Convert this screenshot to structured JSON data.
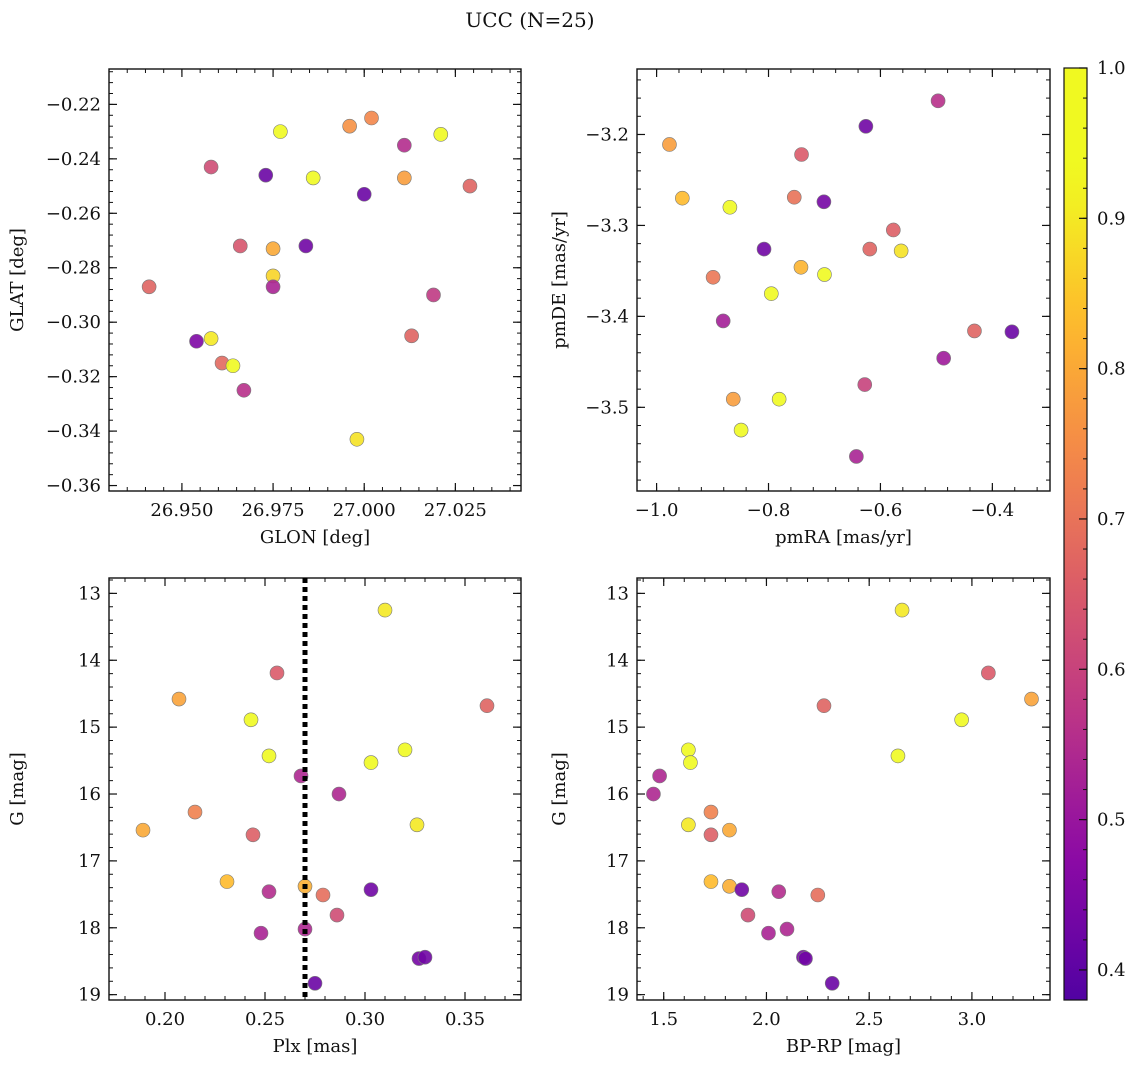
{
  "figure": {
    "title": "UCC (N=25)",
    "colorbar": {
      "min": 0.38,
      "max": 1.0,
      "ticks": [
        0.4,
        0.5,
        0.6,
        0.7,
        0.8,
        0.9,
        1.0
      ],
      "tick_labels": [
        "0.4",
        "0.5",
        "0.6",
        "0.7",
        "0.8",
        "0.9",
        "1.0"
      ]
    },
    "vline_plx": 0.27
  },
  "chart_data": [
    {
      "type": "scatter",
      "xlabel": "GLON [deg]",
      "ylabel": "GLAT [deg]",
      "xlim": [
        26.93,
        27.043
      ],
      "ylim": [
        -0.362,
        -0.207
      ],
      "y_inverted": false,
      "xticks": [
        26.95,
        26.975,
        27.0,
        27.025
      ],
      "xtick_labels": [
        "26.950",
        "26.975",
        "27.000",
        "27.025"
      ],
      "yticks": [
        -0.36,
        -0.34,
        -0.32,
        -0.3,
        -0.28,
        -0.26,
        -0.24,
        -0.22
      ],
      "ytick_labels": [
        "−0.36",
        "−0.34",
        "−0.32",
        "−0.30",
        "−0.28",
        "−0.26",
        "−0.24",
        "−0.22"
      ],
      "points": [
        {
          "x": 26.977,
          "y": -0.23,
          "c": 0.97
        },
        {
          "x": 26.996,
          "y": -0.228,
          "c": 0.76
        },
        {
          "x": 27.002,
          "y": -0.225,
          "c": 0.74
        },
        {
          "x": 27.021,
          "y": -0.231,
          "c": 0.95
        },
        {
          "x": 27.011,
          "y": -0.235,
          "c": 0.55
        },
        {
          "x": 26.958,
          "y": -0.243,
          "c": 0.62
        },
        {
          "x": 26.973,
          "y": -0.246,
          "c": 0.42
        },
        {
          "x": 26.986,
          "y": -0.247,
          "c": 0.97
        },
        {
          "x": 27.011,
          "y": -0.247,
          "c": 0.78
        },
        {
          "x": 27.029,
          "y": -0.25,
          "c": 0.67
        },
        {
          "x": 27.0,
          "y": -0.253,
          "c": 0.42
        },
        {
          "x": 26.966,
          "y": -0.272,
          "c": 0.64
        },
        {
          "x": 26.975,
          "y": -0.273,
          "c": 0.8
        },
        {
          "x": 26.984,
          "y": -0.272,
          "c": 0.43
        },
        {
          "x": 26.975,
          "y": -0.283,
          "c": 0.87
        },
        {
          "x": 26.975,
          "y": -0.287,
          "c": 0.53
        },
        {
          "x": 26.941,
          "y": -0.287,
          "c": 0.67
        },
        {
          "x": 27.019,
          "y": -0.29,
          "c": 0.58
        },
        {
          "x": 27.013,
          "y": -0.305,
          "c": 0.67
        },
        {
          "x": 26.958,
          "y": -0.306,
          "c": 0.9
        },
        {
          "x": 26.954,
          "y": -0.307,
          "c": 0.45
        },
        {
          "x": 26.961,
          "y": -0.315,
          "c": 0.68
        },
        {
          "x": 26.964,
          "y": -0.316,
          "c": 0.99
        },
        {
          "x": 26.967,
          "y": -0.325,
          "c": 0.56
        },
        {
          "x": 26.998,
          "y": -0.343,
          "c": 0.89
        }
      ]
    },
    {
      "type": "scatter",
      "xlabel": "pmRA [mas/yr]",
      "ylabel": "pmDE [mas/yr]",
      "xlim": [
        -1.035,
        -0.297
      ],
      "ylim": [
        -3.592,
        -3.128
      ],
      "y_inverted": false,
      "xticks": [
        -1.0,
        -0.8,
        -0.6,
        -0.4
      ],
      "xtick_labels": [
        "−1.0",
        "−0.8",
        "−0.6",
        "−0.4"
      ],
      "yticks": [
        -3.5,
        -3.4,
        -3.3,
        -3.2
      ],
      "ytick_labels": [
        "−3.5",
        "−3.4",
        "−3.3",
        "−3.2"
      ],
      "points": [
        {
          "x": -0.497,
          "y": -3.163,
          "c": 0.56
        },
        {
          "x": -0.626,
          "y": -3.191,
          "c": 0.43
        },
        {
          "x": -0.977,
          "y": -3.211,
          "c": 0.78
        },
        {
          "x": -0.741,
          "y": -3.222,
          "c": 0.65
        },
        {
          "x": -0.954,
          "y": -3.27,
          "c": 0.83
        },
        {
          "x": -0.754,
          "y": -3.269,
          "c": 0.7
        },
        {
          "x": -0.869,
          "y": -3.28,
          "c": 0.98
        },
        {
          "x": -0.701,
          "y": -3.274,
          "c": 0.44
        },
        {
          "x": -0.577,
          "y": -3.305,
          "c": 0.66
        },
        {
          "x": -0.808,
          "y": -3.326,
          "c": 0.43
        },
        {
          "x": -0.619,
          "y": -3.326,
          "c": 0.67
        },
        {
          "x": -0.563,
          "y": -3.328,
          "c": 0.89
        },
        {
          "x": -0.742,
          "y": -3.346,
          "c": 0.82
        },
        {
          "x": -0.7,
          "y": -3.354,
          "c": 0.98
        },
        {
          "x": -0.899,
          "y": -3.357,
          "c": 0.71
        },
        {
          "x": -0.795,
          "y": -3.375,
          "c": 0.98
        },
        {
          "x": -0.881,
          "y": -3.405,
          "c": 0.52
        },
        {
          "x": -0.432,
          "y": -3.416,
          "c": 0.67
        },
        {
          "x": -0.365,
          "y": -3.417,
          "c": 0.42
        },
        {
          "x": -0.487,
          "y": -3.446,
          "c": 0.51
        },
        {
          "x": -0.628,
          "y": -3.475,
          "c": 0.6
        },
        {
          "x": -0.863,
          "y": -3.491,
          "c": 0.78
        },
        {
          "x": -0.781,
          "y": -3.491,
          "c": 0.93
        },
        {
          "x": -0.849,
          "y": -3.525,
          "c": 0.97
        },
        {
          "x": -0.643,
          "y": -3.554,
          "c": 0.53
        }
      ]
    },
    {
      "type": "scatter",
      "xlabel": "Plx [mas]",
      "ylabel": "G [mag]",
      "xlim": [
        0.172,
        0.378
      ],
      "ylim": [
        19.08,
        12.77
      ],
      "y_inverted": true,
      "xticks": [
        0.2,
        0.25,
        0.3,
        0.35
      ],
      "xtick_labels": [
        "0.20",
        "0.25",
        "0.30",
        "0.35"
      ],
      "yticks": [
        13,
        14,
        15,
        16,
        17,
        18,
        19
      ],
      "ytick_labels": [
        "13",
        "14",
        "15",
        "16",
        "17",
        "18",
        "19"
      ],
      "points": [
        {
          "x": 0.31,
          "y": 13.25,
          "c": 0.9
        },
        {
          "x": 0.256,
          "y": 14.19,
          "c": 0.65
        },
        {
          "x": 0.207,
          "y": 14.58,
          "c": 0.79
        },
        {
          "x": 0.361,
          "y": 14.68,
          "c": 0.67
        },
        {
          "x": 0.243,
          "y": 14.89,
          "c": 0.97
        },
        {
          "x": 0.32,
          "y": 15.34,
          "c": 0.97
        },
        {
          "x": 0.252,
          "y": 15.43,
          "c": 0.96
        },
        {
          "x": 0.303,
          "y": 15.53,
          "c": 0.96
        },
        {
          "x": 0.268,
          "y": 15.73,
          "c": 0.54
        },
        {
          "x": 0.287,
          "y": 16.0,
          "c": 0.54
        },
        {
          "x": 0.215,
          "y": 16.27,
          "c": 0.73
        },
        {
          "x": 0.326,
          "y": 16.46,
          "c": 0.9
        },
        {
          "x": 0.189,
          "y": 16.54,
          "c": 0.8
        },
        {
          "x": 0.244,
          "y": 16.61,
          "c": 0.66
        },
        {
          "x": 0.231,
          "y": 17.31,
          "c": 0.83
        },
        {
          "x": 0.27,
          "y": 17.38,
          "c": 0.81
        },
        {
          "x": 0.252,
          "y": 17.46,
          "c": 0.55
        },
        {
          "x": 0.303,
          "y": 17.43,
          "c": 0.43
        },
        {
          "x": 0.279,
          "y": 17.51,
          "c": 0.69
        },
        {
          "x": 0.286,
          "y": 17.81,
          "c": 0.62
        },
        {
          "x": 0.27,
          "y": 18.02,
          "c": 0.54
        },
        {
          "x": 0.248,
          "y": 18.08,
          "c": 0.53
        },
        {
          "x": 0.327,
          "y": 18.46,
          "c": 0.44
        },
        {
          "x": 0.33,
          "y": 18.44,
          "c": 0.43
        },
        {
          "x": 0.275,
          "y": 18.83,
          "c": 0.42
        }
      ]
    },
    {
      "type": "scatter",
      "xlabel": "BP-RP [mag]",
      "ylabel": "G [mag]",
      "xlim": [
        1.37,
        3.38
      ],
      "ylim": [
        19.08,
        12.77
      ],
      "y_inverted": true,
      "xticks": [
        1.5,
        2.0,
        2.5,
        3.0
      ],
      "xtick_labels": [
        "1.5",
        "2.0",
        "2.5",
        "3.0"
      ],
      "yticks": [
        13,
        14,
        15,
        16,
        17,
        18,
        19
      ],
      "ytick_labels": [
        "13",
        "14",
        "15",
        "16",
        "17",
        "18",
        "19"
      ],
      "points": [
        {
          "x": 2.66,
          "y": 13.25,
          "c": 0.9
        },
        {
          "x": 3.08,
          "y": 14.19,
          "c": 0.65
        },
        {
          "x": 3.29,
          "y": 14.58,
          "c": 0.79
        },
        {
          "x": 2.28,
          "y": 14.68,
          "c": 0.67
        },
        {
          "x": 2.95,
          "y": 14.89,
          "c": 0.97
        },
        {
          "x": 1.62,
          "y": 15.34,
          "c": 0.97
        },
        {
          "x": 2.64,
          "y": 15.43,
          "c": 0.96
        },
        {
          "x": 1.63,
          "y": 15.53,
          "c": 0.96
        },
        {
          "x": 1.48,
          "y": 15.73,
          "c": 0.54
        },
        {
          "x": 1.45,
          "y": 16.0,
          "c": 0.54
        },
        {
          "x": 1.73,
          "y": 16.27,
          "c": 0.73
        },
        {
          "x": 1.62,
          "y": 16.46,
          "c": 0.9
        },
        {
          "x": 1.82,
          "y": 16.54,
          "c": 0.8
        },
        {
          "x": 1.73,
          "y": 16.61,
          "c": 0.66
        },
        {
          "x": 1.73,
          "y": 17.31,
          "c": 0.83
        },
        {
          "x": 1.82,
          "y": 17.38,
          "c": 0.81
        },
        {
          "x": 2.06,
          "y": 17.46,
          "c": 0.55
        },
        {
          "x": 1.88,
          "y": 17.43,
          "c": 0.43
        },
        {
          "x": 2.25,
          "y": 17.51,
          "c": 0.69
        },
        {
          "x": 1.91,
          "y": 17.81,
          "c": 0.62
        },
        {
          "x": 2.1,
          "y": 18.02,
          "c": 0.54
        },
        {
          "x": 2.01,
          "y": 18.08,
          "c": 0.53
        },
        {
          "x": 2.18,
          "y": 18.44,
          "c": 0.44
        },
        {
          "x": 2.19,
          "y": 18.46,
          "c": 0.43
        },
        {
          "x": 2.32,
          "y": 18.83,
          "c": 0.42
        }
      ]
    }
  ]
}
